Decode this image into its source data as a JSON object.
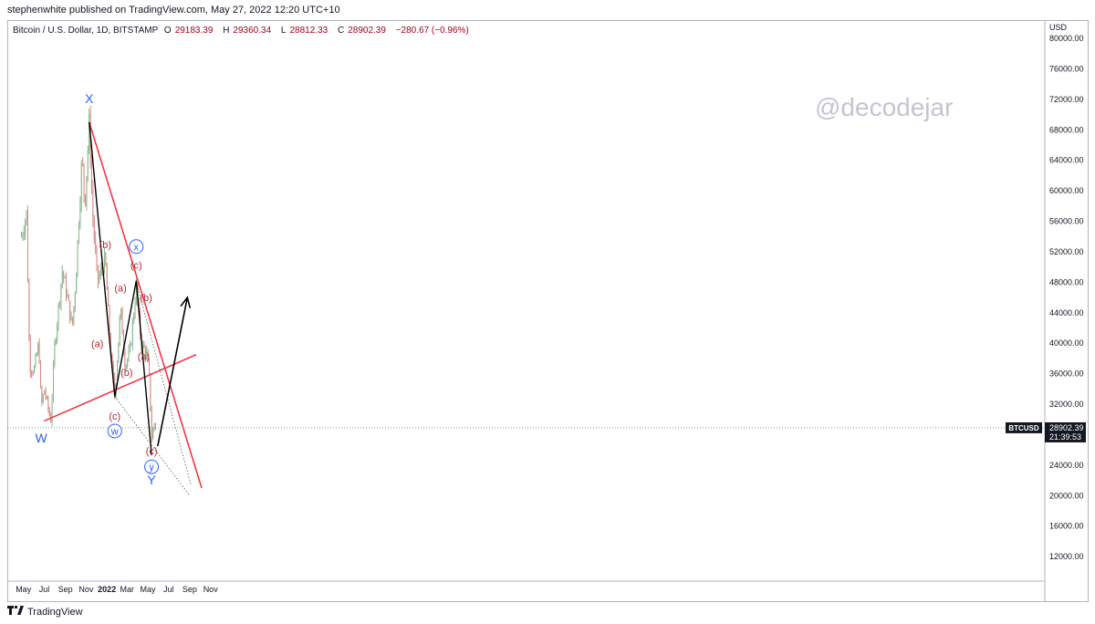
{
  "header": {
    "published_text": "stephenwhite published on TradingView.com, May 27, 2022 12:20 UTC+10"
  },
  "legend": {
    "symbol": "Bitcoin / U.S. Dollar, 1D, BITSTAMP",
    "open_label": "O",
    "open": "29183.39",
    "high_label": "H",
    "high": "29360.34",
    "low_label": "L",
    "low": "28812.33",
    "close_label": "C",
    "close": "28902.39",
    "change": "−280.67 (−0.96%)"
  },
  "watermark": "@decodejar",
  "footer": {
    "brand": "TradingView"
  },
  "colors": {
    "up": "#8bb88f",
    "down": "#d98a85",
    "trendline": "#f23645",
    "wave_blue": "#2962ff",
    "wave_red": "#b22833",
    "text": "#131722"
  },
  "chart_data": {
    "type": "candlestick",
    "symbol": "BTCUSD",
    "currency_label": "USD",
    "ylim": [
      8000,
      82000
    ],
    "yticks": [
      "80000.00",
      "76000.00",
      "72000.00",
      "68000.00",
      "64000.00",
      "60000.00",
      "56000.00",
      "52000.00",
      "48000.00",
      "44000.00",
      "40000.00",
      "36000.00",
      "32000.00",
      "28000.00",
      "24000.00",
      "20000.00",
      "16000.00",
      "12000.00"
    ],
    "xticks": [
      {
        "label": "May",
        "date": "2021-05-01"
      },
      {
        "label": "Jul",
        "date": "2021-07-01"
      },
      {
        "label": "Sep",
        "date": "2021-09-01"
      },
      {
        "label": "Nov",
        "date": "2021-11-01"
      },
      {
        "label": "2022",
        "date": "2022-01-01"
      },
      {
        "label": "Mar",
        "date": "2022-03-01"
      },
      {
        "label": "May",
        "date": "2022-05-01"
      },
      {
        "label": "Jul",
        "date": "2022-07-01"
      },
      {
        "label": "Sep",
        "date": "2022-09-01"
      },
      {
        "label": "Nov",
        "date": "2022-11-01"
      }
    ],
    "price_path": [
      [
        "2021-04-25",
        54000
      ],
      [
        "2021-05-10",
        57000
      ],
      [
        "2021-05-19",
        37000
      ],
      [
        "2021-06-01",
        36500
      ],
      [
        "2021-06-15",
        40000
      ],
      [
        "2021-06-22",
        31500
      ],
      [
        "2021-07-01",
        34000
      ],
      [
        "2021-07-20",
        29800
      ],
      [
        "2021-08-01",
        40000
      ],
      [
        "2021-08-23",
        49500
      ],
      [
        "2021-09-07",
        46000
      ],
      [
        "2021-09-21",
        42000
      ],
      [
        "2021-10-01",
        48000
      ],
      [
        "2021-10-20",
        64500
      ],
      [
        "2021-10-28",
        58000
      ],
      [
        "2021-11-10",
        69000
      ],
      [
        "2021-11-20",
        57000
      ],
      [
        "2021-12-04",
        48000
      ],
      [
        "2021-12-27",
        51000
      ],
      [
        "2022-01-10",
        40000
      ],
      [
        "2022-01-24",
        33000
      ],
      [
        "2022-02-10",
        44500
      ],
      [
        "2022-02-24",
        37000
      ],
      [
        "2022-03-10",
        39000
      ],
      [
        "2022-03-28",
        47500
      ],
      [
        "2022-04-11",
        40000
      ],
      [
        "2022-04-28",
        38500
      ],
      [
        "2022-05-06",
        35000
      ],
      [
        "2022-05-12",
        27500
      ],
      [
        "2022-05-20",
        29500
      ],
      [
        "2022-05-27",
        28902
      ]
    ],
    "last_price": {
      "symbol_tag": "BTCUSD",
      "value": "28902.39",
      "countdown": "21:39:53"
    },
    "wave_labels": [
      {
        "text": "W",
        "date": "2021-06-22",
        "price": 27000,
        "color": "blue"
      },
      {
        "text": "X",
        "date": "2021-11-10",
        "price": 71500,
        "color": "blue"
      },
      {
        "text": "Y",
        "date": "2022-05-12",
        "price": 21500,
        "color": "blue"
      },
      {
        "text": "w",
        "date": "2022-01-24",
        "price": 28000,
        "color": "blue",
        "circled": true
      },
      {
        "text": "x",
        "date": "2022-03-28",
        "price": 52200,
        "color": "blue",
        "circled": true
      },
      {
        "text": "y",
        "date": "2022-05-12",
        "price": 23300,
        "color": "blue",
        "circled": true
      },
      {
        "text": "(a)",
        "date": "2021-12-04",
        "price": 39500,
        "color": "red"
      },
      {
        "text": "(b)",
        "date": "2021-12-27",
        "price": 52500,
        "color": "red"
      },
      {
        "text": "(c)",
        "date": "2022-01-24",
        "price": 30000,
        "color": "red"
      },
      {
        "text": "(a)",
        "date": "2022-02-10",
        "price": 46800,
        "color": "red"
      },
      {
        "text": "(b)",
        "date": "2022-02-28",
        "price": 35700,
        "color": "red"
      },
      {
        "text": "(c)",
        "date": "2022-03-28",
        "price": 49800,
        "color": "red"
      },
      {
        "text": "(a)",
        "date": "2022-04-19",
        "price": 37800,
        "color": "red"
      },
      {
        "text": "(b)",
        "date": "2022-04-26",
        "price": 45500,
        "color": "red"
      },
      {
        "text": "(c)",
        "date": "2022-05-12",
        "price": 25400,
        "color": "red"
      }
    ],
    "trendlines": [
      {
        "from": [
          "2021-07-01",
          29800
        ],
        "to": [
          "2022-09-20",
          38500
        ],
        "style": "solid-red"
      },
      {
        "from": [
          "2021-11-10",
          69000
        ],
        "to": [
          "2022-10-06",
          21000
        ],
        "style": "solid-red"
      },
      {
        "from": [
          "2022-01-24",
          33000
        ],
        "to": [
          "2022-09-01",
          20000
        ],
        "style": "dotted"
      },
      {
        "from": [
          "2022-03-28",
          48000
        ],
        "to": [
          "2022-09-04",
          21500
        ],
        "style": "dotted"
      }
    ],
    "wave_path": [
      [
        "2021-11-10",
        69000
      ],
      [
        "2022-01-24",
        33000
      ],
      [
        "2022-03-28",
        48200
      ],
      [
        "2022-05-12",
        25300
      ]
    ],
    "projection_arrow": {
      "from": [
        "2022-05-30",
        26500
      ],
      "to": [
        "2022-08-25",
        46000
      ]
    }
  }
}
